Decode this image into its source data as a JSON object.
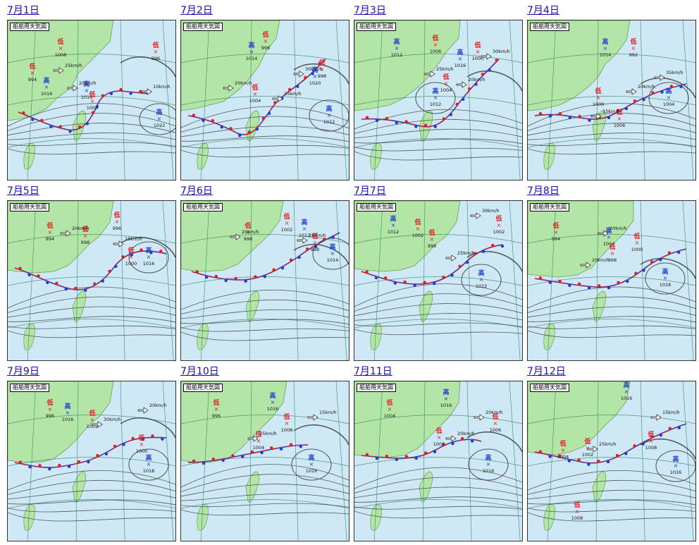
{
  "page": {
    "map_label": "船舶用天気図"
  },
  "maps": [
    {
      "date": "7月1日",
      "highs": [
        "1016",
        "1016",
        "1022"
      ],
      "lows": [
        "994",
        "1008",
        "1000",
        "996"
      ],
      "winds": [
        "25km/h",
        "20km/h",
        "10km/h"
      ]
    },
    {
      "date": "7月2日",
      "highs": [
        "1014",
        "1020",
        "1012"
      ],
      "lows": [
        "996",
        "1004",
        "998"
      ],
      "winds": [
        "20km/h",
        "30km/h",
        "15km/h"
      ]
    },
    {
      "date": "7月3日",
      "highs": [
        "1012",
        "1016",
        "1012"
      ],
      "lows": [
        "1006",
        "1004",
        "1000"
      ],
      "winds": [
        "30km/h",
        "25km/h",
        "20km/h"
      ]
    },
    {
      "date": "7月4日",
      "highs": [
        "1014",
        "1004"
      ],
      "lows": [
        "992",
        "1006",
        "1006"
      ],
      "winds": [
        "35km/h",
        "20km/h",
        "15km/h"
      ]
    },
    {
      "date": "7月5日",
      "highs": [
        "1016"
      ],
      "lows": [
        "994",
        "998",
        "996",
        "1000"
      ],
      "winds": [
        "20km/h",
        "15km/h"
      ]
    },
    {
      "date": "7月6日",
      "highs": [
        "1012",
        "1014"
      ],
      "lows": [
        "998",
        "1002",
        "998"
      ],
      "winds": [
        "20km/h",
        "25km/h"
      ]
    },
    {
      "date": "7月7日",
      "highs": [
        "1012",
        "1022"
      ],
      "lows": [
        "1002",
        "998",
        "1002"
      ],
      "winds": [
        "30km/h",
        "25km/h"
      ]
    },
    {
      "date": "7月8日",
      "highs": [
        "1004",
        "1018"
      ],
      "lows": [
        "994",
        "998",
        "1000"
      ],
      "winds": [
        "20km/h",
        "20km/h"
      ]
    },
    {
      "date": "7月9日",
      "highs": [
        "1016",
        "1018"
      ],
      "lows": [
        "996",
        "1002",
        "1000"
      ],
      "winds": [
        "30km/h",
        "20km/h"
      ]
    },
    {
      "date": "7月10日",
      "highs": [
        "1016",
        "1016"
      ],
      "lows": [
        "996",
        "1004",
        "1008"
      ],
      "winds": [
        "25km/h",
        "15km/h"
      ]
    },
    {
      "date": "7月11日",
      "highs": [
        "1016",
        "1016"
      ],
      "lows": [
        "1004",
        "1002",
        "1006"
      ],
      "winds": [
        "20km/h",
        "20km/h"
      ]
    },
    {
      "date": "7月12日",
      "highs": [
        "1016",
        "1016"
      ],
      "lows": [
        "1004",
        "1002",
        "1008",
        "1008"
      ],
      "winds": [
        "25km/h",
        "15km/h"
      ]
    }
  ]
}
